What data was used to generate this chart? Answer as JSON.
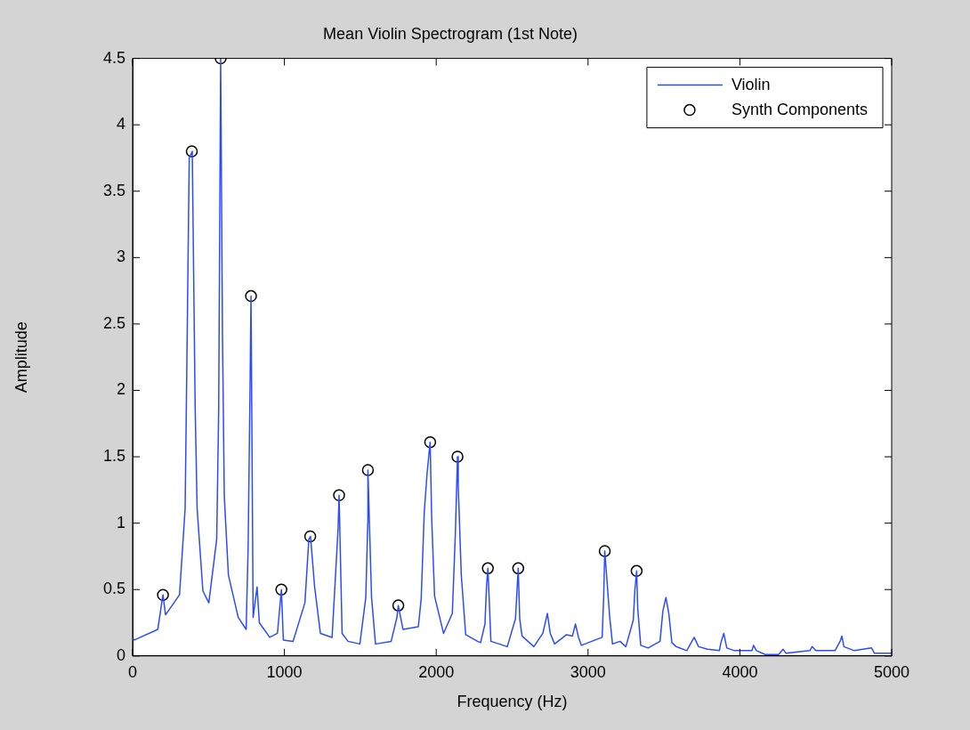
{
  "chart_data": {
    "type": "line",
    "title": "Mean Violin Spectrogram (1st Note)",
    "xlabel": "Frequency (Hz)",
    "ylabel": "Amplitude",
    "xlim": [
      0,
      5000
    ],
    "xticks": [
      0,
      1000,
      2000,
      3000,
      4000,
      5000
    ],
    "ylim": [
      0,
      4.5
    ],
    "yticks": [
      0,
      0.5,
      1,
      1.5,
      2,
      2.5,
      3,
      3.5,
      4,
      4.5
    ],
    "grid": false,
    "legend": "top right",
    "series": [
      {
        "name": "Violin",
        "type": "line",
        "marker": "none",
        "line_style": "solid",
        "color": "#2b4bff",
        "x": [
          0,
          12,
          166,
          192,
          200,
          217,
          309,
          346,
          360,
          373,
          393,
          412,
          425,
          463,
          502,
          554,
          567,
          580,
          592,
          604,
          631,
          696,
          748,
          761,
          774,
          780,
          794,
          820,
          835,
          903,
          954,
          980,
          993,
          1057,
          1135,
          1161,
          1172,
          1199,
          1237,
          1314,
          1354,
          1360,
          1380,
          1419,
          1497,
          1536,
          1549,
          1550,
          1574,
          1600,
          1703,
          1741,
          1750,
          1781,
          1882,
          1901,
          1921,
          1940,
          1960,
          1970,
          1989,
          2048,
          2106,
          2126,
          2140,
          2145,
          2165,
          2194,
          2272,
          2292,
          2321,
          2331,
          2340,
          2350,
          2360,
          2468,
          2522,
          2540,
          2550,
          2565,
          2643,
          2702,
          2732,
          2751,
          2780,
          2858,
          2897,
          2917,
          2937,
          2956,
          3093,
          3103,
          3110,
          3122,
          3142,
          3161,
          3210,
          3249,
          3298,
          3308,
          3320,
          3327,
          3347,
          3396,
          3474,
          3493,
          3513,
          3532,
          3552,
          3581,
          3650,
          3699,
          3728,
          3787,
          3865,
          3875,
          3894,
          3914,
          3963,
          4080,
          4090,
          4109,
          4168,
          4255,
          4285,
          4304,
          4461,
          4476,
          4500,
          4627,
          4660,
          4672,
          4685,
          4754,
          4867,
          4887,
          4988,
          5000
        ],
        "values": [
          0.13,
          0.12,
          0.2,
          0.4,
          0.46,
          0.31,
          0.46,
          1.11,
          2.45,
          3.75,
          3.8,
          1.88,
          1.11,
          0.49,
          0.4,
          0.88,
          1.85,
          4.5,
          2.42,
          1.2,
          0.61,
          0.29,
          0.2,
          0.82,
          2.06,
          2.71,
          0.29,
          0.52,
          0.25,
          0.14,
          0.17,
          0.5,
          0.12,
          0.11,
          0.4,
          0.88,
          0.9,
          0.52,
          0.17,
          0.14,
          0.97,
          1.21,
          0.17,
          0.11,
          0.09,
          0.44,
          1.0,
          1.4,
          0.44,
          0.09,
          0.11,
          0.29,
          0.38,
          0.2,
          0.22,
          0.43,
          1.08,
          1.38,
          1.61,
          1.04,
          0.45,
          0.17,
          0.32,
          0.92,
          1.5,
          1.28,
          0.61,
          0.16,
          0.11,
          0.1,
          0.24,
          0.52,
          0.66,
          0.4,
          0.11,
          0.07,
          0.28,
          0.66,
          0.28,
          0.15,
          0.07,
          0.17,
          0.32,
          0.17,
          0.09,
          0.16,
          0.15,
          0.24,
          0.14,
          0.08,
          0.14,
          0.45,
          0.79,
          0.61,
          0.3,
          0.09,
          0.11,
          0.07,
          0.27,
          0.49,
          0.64,
          0.36,
          0.08,
          0.06,
          0.11,
          0.34,
          0.44,
          0.32,
          0.1,
          0.07,
          0.04,
          0.14,
          0.07,
          0.05,
          0.04,
          0.1,
          0.17,
          0.06,
          0.04,
          0.04,
          0.08,
          0.04,
          0.01,
          0.01,
          0.05,
          0.02,
          0.04,
          0.07,
          0.04,
          0.04,
          0.11,
          0.15,
          0.07,
          0.04,
          0.06,
          0.02,
          0.02,
          0.02
        ]
      },
      {
        "name": "Synth Components",
        "type": "scatter",
        "marker": "circle",
        "color": "#000000",
        "x": [
          200,
          390,
          580,
          780,
          980,
          1170,
          1360,
          1550,
          1750,
          1960,
          2140,
          2340,
          2540,
          3110,
          3320
        ],
        "values": [
          0.46,
          3.8,
          4.5,
          2.71,
          0.5,
          0.9,
          1.21,
          1.4,
          0.38,
          1.61,
          1.5,
          0.66,
          0.66,
          0.79,
          0.64
        ]
      }
    ]
  }
}
